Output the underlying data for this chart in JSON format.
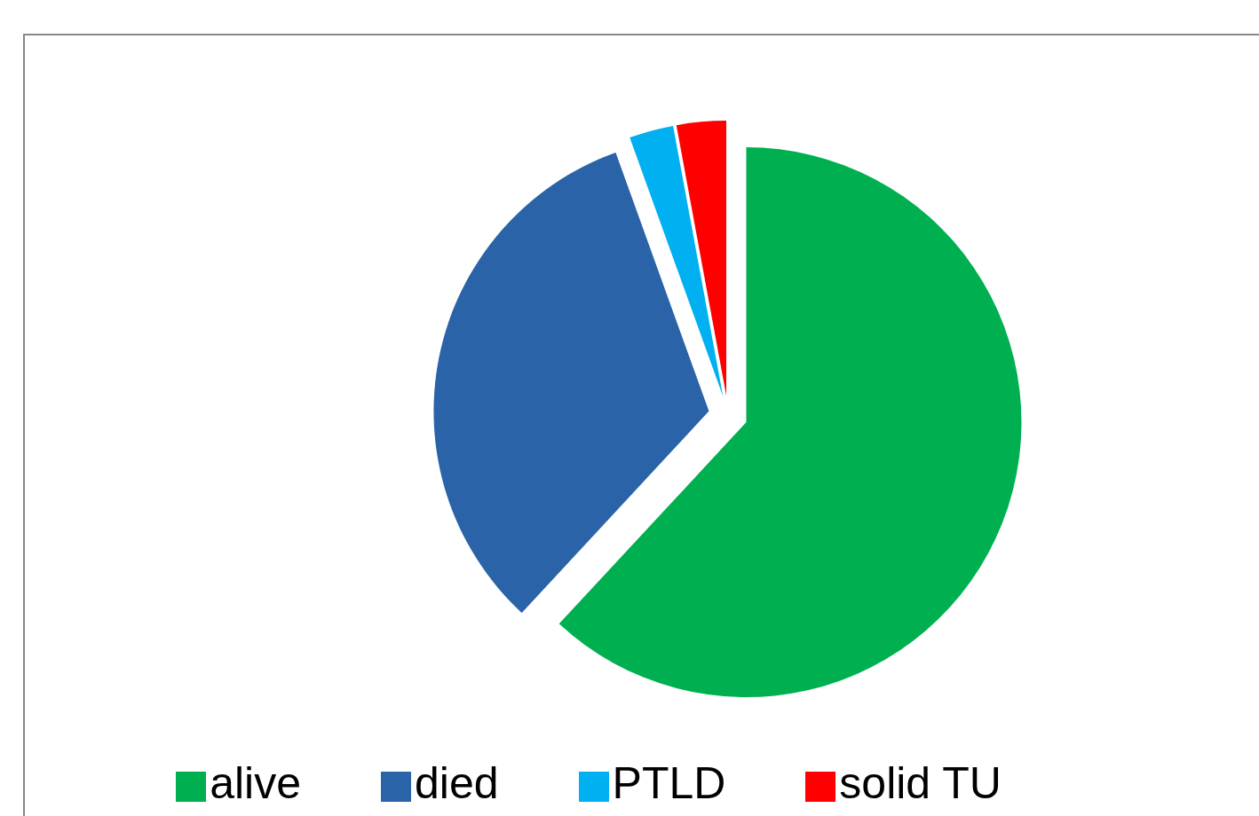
{
  "chart_data": {
    "type": "pie",
    "categories": [
      "alive",
      "died",
      "PTLD",
      "solid TU"
    ],
    "values": [
      61.9,
      32.6,
      2.6,
      2.9
    ],
    "colors": [
      "#00b050",
      "#2a63a8",
      "#00b0f0",
      "#ff0000"
    ],
    "legend": "bottom"
  }
}
